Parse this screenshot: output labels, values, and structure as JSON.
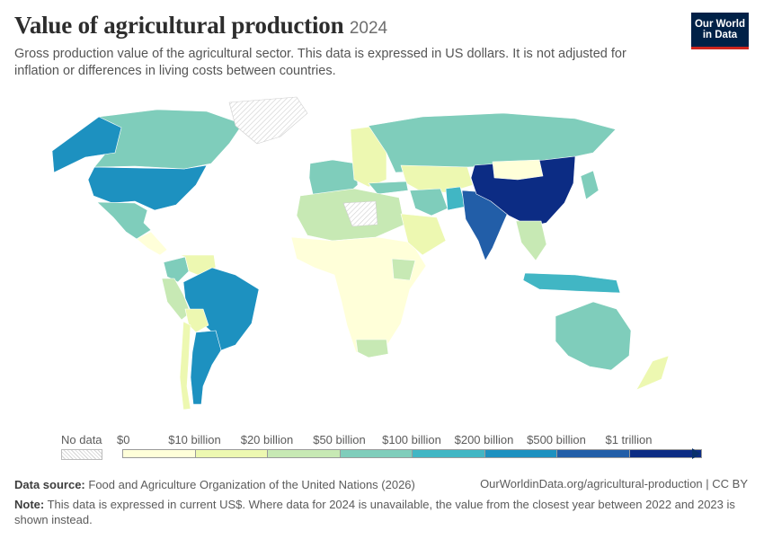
{
  "header": {
    "title": "Value of agricultural production",
    "year": "2024",
    "subtitle": "Gross production value of the agricultural sector. This data is expressed in US dollars. It is not adjusted for inflation or differences in living costs between countries.",
    "logo_line1": "Our World",
    "logo_line2": "in Data"
  },
  "legend": {
    "nodata_label": "No data",
    "ticks": [
      "$0",
      "$10 billion",
      "$20 billion",
      "$50 billion",
      "$100 billion",
      "$200 billion",
      "$500 billion",
      "$1 trillion"
    ],
    "colors": [
      "#ffffd9",
      "#edf8b1",
      "#c7e9b4",
      "#7fcdbb",
      "#41b6c4",
      "#1d91c0",
      "#225ea8",
      "#0c2c84"
    ],
    "nodata_color": "#f2f2f2"
  },
  "map_data": {
    "projection": "Robinson",
    "countries": [
      {
        "name": "United States",
        "bin": 5
      },
      {
        "name": "Canada",
        "bin": 3
      },
      {
        "name": "Alaska (US)",
        "bin": 5
      },
      {
        "name": "Greenland",
        "bin": -1
      },
      {
        "name": "Mexico",
        "bin": 3
      },
      {
        "name": "Central America",
        "bin": 0
      },
      {
        "name": "Colombia",
        "bin": 3
      },
      {
        "name": "Venezuela",
        "bin": 1
      },
      {
        "name": "Peru",
        "bin": 2
      },
      {
        "name": "Brazil",
        "bin": 5
      },
      {
        "name": "Bolivia",
        "bin": 1
      },
      {
        "name": "Argentina",
        "bin": 5
      },
      {
        "name": "Chile",
        "bin": 1
      },
      {
        "name": "Western Europe",
        "bin": 3
      },
      {
        "name": "Eastern Europe",
        "bin": 1
      },
      {
        "name": "Russia",
        "bin": 3
      },
      {
        "name": "Kazakhstan",
        "bin": 1
      },
      {
        "name": "Turkey",
        "bin": 3
      },
      {
        "name": "Iran",
        "bin": 3
      },
      {
        "name": "Pakistan",
        "bin": 4
      },
      {
        "name": "India",
        "bin": 6
      },
      {
        "name": "China",
        "bin": 7
      },
      {
        "name": "Mongolia",
        "bin": 0
      },
      {
        "name": "Japan",
        "bin": 3
      },
      {
        "name": "Southeast Asia",
        "bin": 2
      },
      {
        "name": "Indonesia",
        "bin": 4
      },
      {
        "name": "Australia",
        "bin": 3
      },
      {
        "name": "New Zealand",
        "bin": 1
      },
      {
        "name": "North Africa",
        "bin": 2
      },
      {
        "name": "Libya",
        "bin": -1
      },
      {
        "name": "Nigeria",
        "bin": 3
      },
      {
        "name": "Sub-Saharan Africa",
        "bin": 0
      },
      {
        "name": "Ethiopia",
        "bin": 2
      },
      {
        "name": "South Africa",
        "bin": 2
      },
      {
        "name": "Arabian Peninsula",
        "bin": 1
      }
    ]
  },
  "footer": {
    "source_label": "Data source:",
    "source_text": "Food and Agriculture Organization of the United Nations (2026)",
    "credit": "OurWorldinData.org/agricultural-production | CC BY",
    "note_label": "Note:",
    "note_text": "This data is expressed in current US$. Where data for 2024 is unavailable, the value from the closest year between 2022 and 2023 is shown instead."
  }
}
